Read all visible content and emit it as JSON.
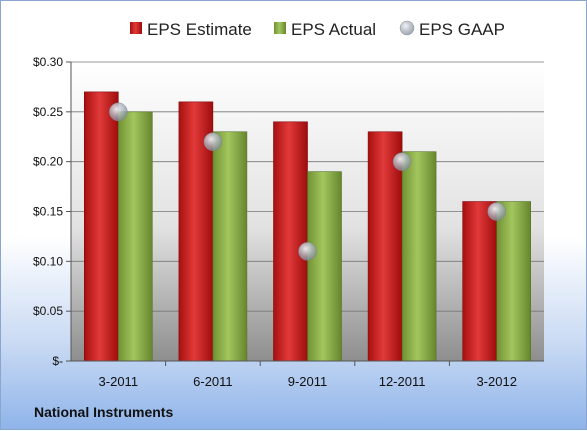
{
  "chart_data": {
    "type": "bar",
    "categories": [
      "3-2011",
      "6-2011",
      "9-2011",
      "12-2011",
      "3-2012"
    ],
    "series": [
      {
        "name": "EPS Estimate",
        "values": [
          0.27,
          0.26,
          0.24,
          0.23,
          0.16
        ],
        "color": "#cc1f1f"
      },
      {
        "name": "EPS Actual",
        "values": [
          0.25,
          0.23,
          0.19,
          0.21,
          0.16
        ],
        "color": "#8db04a"
      },
      {
        "name": "EPS GAAP",
        "values": [
          0.25,
          0.22,
          0.11,
          0.2,
          0.15
        ],
        "color": "#b8bfc8",
        "marker": "circle"
      }
    ],
    "ylim": [
      0,
      0.3
    ],
    "yticks": [
      0,
      0.05,
      0.1,
      0.15,
      0.2,
      0.25,
      0.3
    ],
    "ytick_labels": [
      "$-",
      "$0.05",
      "$0.10",
      "$0.15",
      "$0.20",
      "$0.25",
      "$0.30"
    ],
    "grid": true,
    "legend": "top"
  },
  "footer": {
    "company": "National Instruments"
  }
}
